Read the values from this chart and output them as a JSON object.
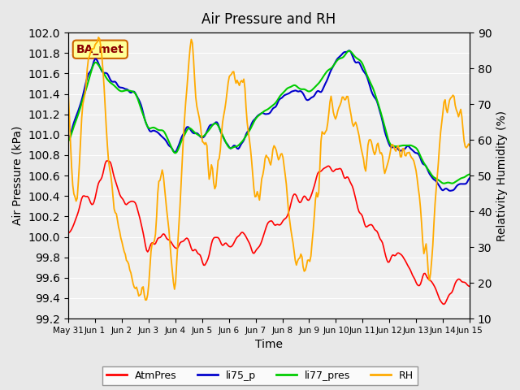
{
  "title": "Air Pressure and RH",
  "xlabel": "Time",
  "ylabel_left": "Air Pressure (kPa)",
  "ylabel_right": "Relativity Humidity (%)",
  "ylim_left": [
    99.2,
    102.0
  ],
  "ylim_right": [
    10,
    90
  ],
  "yticks_left": [
    99.2,
    99.4,
    99.6,
    99.8,
    100.0,
    100.2,
    100.4,
    100.6,
    100.8,
    101.0,
    101.2,
    101.4,
    101.6,
    101.8,
    102.0
  ],
  "yticks_right": [
    10,
    20,
    30,
    40,
    50,
    60,
    70,
    80,
    90
  ],
  "xtick_labels": [
    "May 31",
    "Jun 1",
    "Jun 2",
    "Jun 3",
    "Jun 4",
    "Jun 5",
    "Jun 6",
    "Jun 7",
    "Jun 8",
    "Jun 9",
    "Jun 10",
    "Jun 11",
    "Jun 12",
    "Jun 13",
    "Jun 14",
    "Jun 15"
  ],
  "legend_labels": [
    "AtmPres",
    "li75_p",
    "li77_pres",
    "RH"
  ],
  "legend_colors": [
    "#ff0000",
    "#0000cc",
    "#00cc00",
    "#ffaa00"
  ],
  "bg_color": "#e8e8e8",
  "plot_bg_color": "#f0f0f0",
  "annotation_text": "BA_met",
  "annotation_bg": "#ffff99",
  "annotation_border": "#cc6600",
  "annotation_text_color": "#8b0000"
}
